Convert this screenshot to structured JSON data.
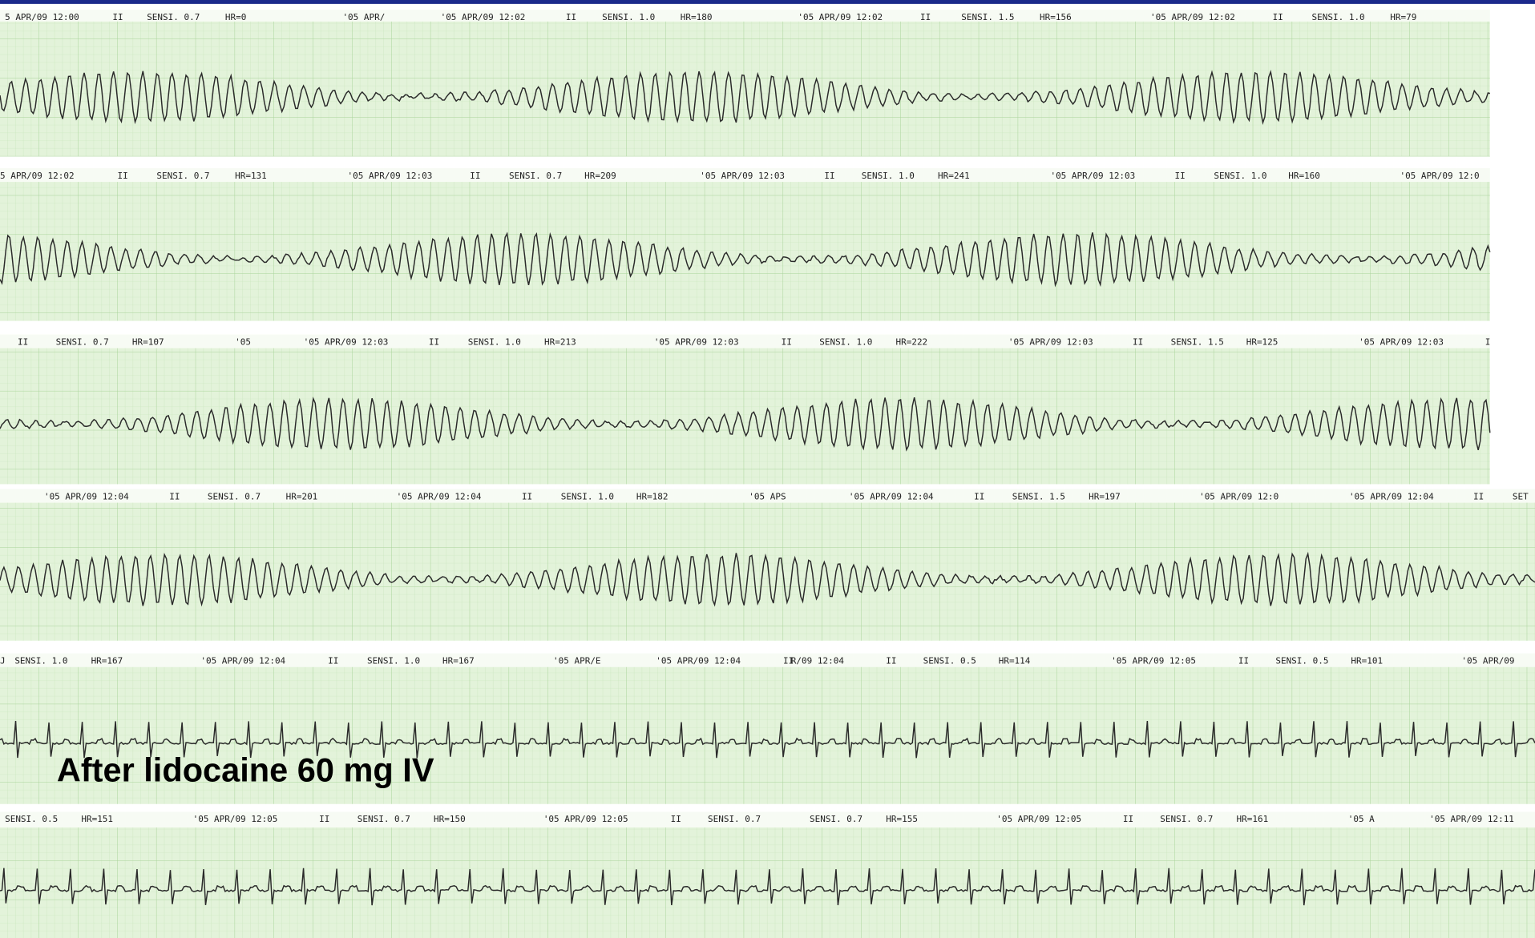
{
  "rows": [
    {
      "labels": [
        "5 APR/09 12:00",
        "II",
        "SENSI. 0.7",
        "HR=0",
        "'05 APR/",
        "'05 APR/09 12:02",
        "II",
        "SENSI. 1.0",
        "HR=180",
        "'05 APR/09 12:02",
        "II",
        "SENSI. 1.5",
        "HR=156",
        "'05 APR/09 12:02",
        "II",
        "SENSI. 1.0",
        "HR=79"
      ]
    },
    {
      "labels": [
        "5 APR/09 12:02",
        "II",
        "SENSI. 0.7",
        "HR=131",
        "'05 APR/09 12:03",
        "II",
        "SENSI. 0.7",
        "HR=209",
        "'05 APR/09 12:03",
        "II",
        "SENSI. 1.0",
        "HR=241",
        "'05 APR/09 12:03",
        "II",
        "SENSI. 1.0",
        "HR=160",
        "'05 APR/09 12:0"
      ]
    },
    {
      "labels": [
        "II",
        "SENSI. 0.7",
        "HR=107",
        "'05",
        "'05 APR/09 12:03",
        "II",
        "SENSI. 1.0",
        "HR=213",
        "'05 APR/09 12:03",
        "II",
        "SENSI. 1.0",
        "HR=222",
        "'05 APR/09 12:03",
        "II",
        "SENSI. 1.5",
        "HR=125",
        "'05 APR/09 12:03",
        "I"
      ]
    },
    {
      "labels": [
        "'05 APR/09 12:04",
        "II",
        "SENSI. 0.7",
        "HR=201",
        "'05 APR/09 12:04",
        "II",
        "SENSI. 1.0",
        "HR=182",
        "'05 APS",
        "'05 APR/09 12:04",
        "II",
        "SENSI. 1.5",
        "HR=197",
        "'05 APR/09 12:0",
        "'05 APR/09 12:04",
        "II",
        "SET"
      ]
    },
    {
      "labels": [
        "J",
        "SENSI. 1.0",
        "HR=167",
        "'05 APR/09 12:04",
        "II",
        "SENSI. 1.0",
        "HR=167",
        "'05 APR/E",
        "'05 APR/09 12:04",
        "II",
        "R/09 12:04",
        "II",
        "SENSI. 0.5",
        "HR=114",
        "'05 APR/09 12:05",
        "II",
        "SENSI. 0.5",
        "HR=101",
        "'05 APR/09"
      ]
    },
    {
      "labels": [
        "SENSI. 0.5",
        "HR=151",
        "'05 APR/09 12:05",
        "II",
        "SENSI. 0.7",
        "HR=150",
        "'05 APR/09 12:05",
        "II",
        "SENSI. 0.7",
        "SENSI. 0.7",
        "HR=155",
        "'05 APR/09 12:05",
        "II",
        "SENSI. 0.7",
        "HR=161",
        "'05 A",
        "'05 APR/09 12:11"
      ]
    }
  ],
  "annotation": "After lidocaine 60 mg IV"
}
